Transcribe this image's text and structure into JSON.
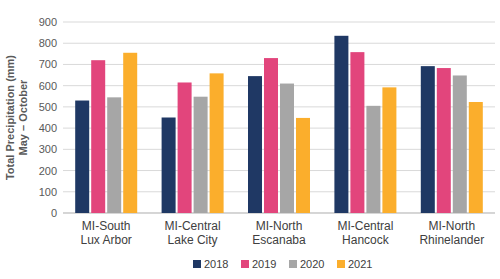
{
  "chart_data": {
    "type": "bar",
    "y_label": "Total Precipitation (mm)\nMay – October",
    "categories": [
      "MI-South Lux Arbor",
      "MI-Central Lake City",
      "MI-North Escanaba",
      "MI-Central Hancock",
      "MI-North Rhinelander"
    ],
    "series": [
      {
        "name": "2018",
        "color": "#1f3864",
        "values": [
          530,
          450,
          645,
          835,
          692
        ]
      },
      {
        "name": "2019",
        "color": "#e2457c",
        "values": [
          720,
          615,
          730,
          758,
          683
        ]
      },
      {
        "name": "2020",
        "color": "#a6a6a6",
        "values": [
          545,
          548,
          610,
          505,
          648
        ]
      },
      {
        "name": "2021",
        "color": "#fbae2c",
        "values": [
          755,
          658,
          448,
          592,
          523
        ]
      }
    ],
    "ylim": [
      0,
      900
    ],
    "yticks": [
      0,
      100,
      200,
      300,
      400,
      500,
      600,
      700,
      800,
      900
    ],
    "grid": true,
    "legend": "bottom"
  }
}
